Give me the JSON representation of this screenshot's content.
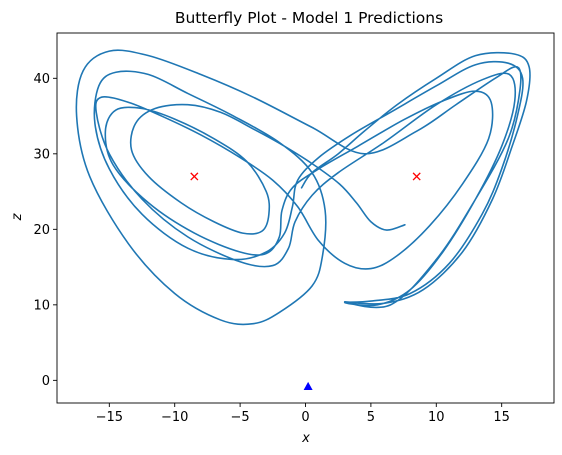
{
  "chart_data": {
    "type": "line",
    "title": "Butterfly Plot - Model 1 Predictions",
    "xlabel": "x",
    "ylabel": "z",
    "xlim": [
      -19,
      19
    ],
    "ylim": [
      -3,
      46
    ],
    "xticks": [
      -15,
      -10,
      -5,
      0,
      5,
      10,
      15
    ],
    "yticks": [
      0,
      10,
      20,
      30,
      40
    ],
    "xtick_labels": [
      "−15",
      "−10",
      "−5",
      "0",
      "5",
      "10",
      "15"
    ],
    "ytick_labels": [
      "0",
      "10",
      "20",
      "30",
      "40"
    ],
    "grid": false,
    "line_color": "#1f77b4",
    "series": [
      {
        "type": "line",
        "points": [
          [
            7.6,
            20.6
          ],
          [
            6.2,
            19.9
          ],
          [
            5.0,
            21.0
          ],
          [
            3.9,
            23.5
          ],
          [
            2.6,
            26.0
          ],
          [
            0.5,
            28.7
          ],
          [
            -2.0,
            31.4
          ],
          [
            -4.0,
            33.3
          ],
          [
            -6.5,
            35.5
          ],
          [
            -9.0,
            36.5
          ],
          [
            -11.5,
            36.0
          ],
          [
            -13.0,
            34.0
          ],
          [
            -13.3,
            30.5
          ],
          [
            -12.0,
            27.0
          ],
          [
            -9.5,
            23.5
          ],
          [
            -7.0,
            21.0
          ],
          [
            -4.8,
            19.5
          ],
          [
            -3.3,
            19.8
          ],
          [
            -2.8,
            22.0
          ],
          [
            -3.0,
            25.0
          ],
          [
            -4.5,
            29.0
          ],
          [
            -7.0,
            32.0
          ],
          [
            -10.0,
            34.6
          ],
          [
            -12.5,
            36.0
          ],
          [
            -14.5,
            35.8
          ],
          [
            -15.3,
            33.0
          ],
          [
            -14.7,
            28.5
          ],
          [
            -12.0,
            23.5
          ],
          [
            -8.5,
            19.5
          ],
          [
            -5.0,
            17.0
          ],
          [
            -3.0,
            16.8
          ],
          [
            -2.0,
            19.0
          ],
          [
            -1.8,
            22.5
          ],
          [
            -1.0,
            25.5
          ],
          [
            1.0,
            28.0
          ],
          [
            4.0,
            31.0
          ],
          [
            7.5,
            34.5
          ],
          [
            10.5,
            37.0
          ],
          [
            13.0,
            38.3
          ],
          [
            14.2,
            36.8
          ],
          [
            14.0,
            32.0
          ],
          [
            12.0,
            26.0
          ],
          [
            9.5,
            20.5
          ],
          [
            7.0,
            16.5
          ],
          [
            5.0,
            14.8
          ],
          [
            3.0,
            15.5
          ],
          [
            1.0,
            18.5
          ],
          [
            -0.6,
            23.0
          ],
          [
            -2.5,
            26.5
          ],
          [
            -5.0,
            29.5
          ],
          [
            -8.0,
            32.5
          ],
          [
            -11.0,
            35.0
          ],
          [
            -13.5,
            36.8
          ],
          [
            -15.6,
            37.5
          ],
          [
            -16.0,
            35.5
          ],
          [
            -15.0,
            30.0
          ],
          [
            -12.5,
            24.0
          ],
          [
            -9.0,
            19.0
          ],
          [
            -5.0,
            15.7
          ],
          [
            -2.5,
            15.2
          ],
          [
            -1.3,
            17.5
          ],
          [
            -0.8,
            21.0
          ],
          [
            0.5,
            24.5
          ],
          [
            2.5,
            27.5
          ],
          [
            6.0,
            31.5
          ],
          [
            10.0,
            36.5
          ],
          [
            13.5,
            39.8
          ],
          [
            15.6,
            40.5
          ],
          [
            16.0,
            37.0
          ],
          [
            15.0,
            31.0
          ],
          [
            13.0,
            24.0
          ],
          [
            10.5,
            17.0
          ],
          [
            8.0,
            12.0
          ],
          [
            5.5,
            10.0
          ],
          [
            3.0,
            10.3
          ],
          [
            5.0,
            10.5
          ],
          [
            8.0,
            11.5
          ],
          [
            11.0,
            15.5
          ],
          [
            13.5,
            22.0
          ],
          [
            15.0,
            28.0
          ],
          [
            16.2,
            35.0
          ],
          [
            16.6,
            40.0
          ],
          [
            15.5,
            42.0
          ],
          [
            13.0,
            41.8
          ],
          [
            10.0,
            39.0
          ],
          [
            6.5,
            35.5
          ],
          [
            3.5,
            32.5
          ],
          [
            1.0,
            29.5
          ],
          [
            -0.6,
            26.5
          ],
          [
            -1.0,
            23.0
          ],
          [
            -1.6,
            19.5
          ],
          [
            -3.0,
            17.0
          ],
          [
            -5.5,
            16.0
          ],
          [
            -9.0,
            17.5
          ],
          [
            -12.5,
            22.0
          ],
          [
            -15.0,
            28.0
          ],
          [
            -16.1,
            34.0
          ],
          [
            -15.8,
            39.0
          ],
          [
            -14.5,
            40.8
          ],
          [
            -12.0,
            40.5
          ],
          [
            -9.0,
            38.0
          ],
          [
            -5.5,
            35.0
          ],
          [
            -2.0,
            31.5
          ],
          [
            0.5,
            27.5
          ],
          [
            1.5,
            22.5
          ],
          [
            1.3,
            16.5
          ],
          [
            0.5,
            12.5
          ],
          [
            -2.0,
            9.0
          ],
          [
            -4.0,
            7.5
          ],
          [
            -6.5,
            8.0
          ],
          [
            -10.0,
            11.5
          ],
          [
            -13.5,
            18.0
          ],
          [
            -16.5,
            27.0
          ],
          [
            -17.5,
            35.0
          ],
          [
            -17.0,
            41.0
          ],
          [
            -15.0,
            43.6
          ],
          [
            -12.0,
            43.0
          ],
          [
            -8.0,
            40.5
          ],
          [
            -4.0,
            37.5
          ],
          [
            0.5,
            33.5
          ],
          [
            4.5,
            30.0
          ],
          [
            8.5,
            33.0
          ],
          [
            11.5,
            36.5
          ],
          [
            14.5,
            40.0
          ],
          [
            16.2,
            41.5
          ],
          [
            16.4,
            38.5
          ],
          [
            15.5,
            32.0
          ],
          [
            13.0,
            24.0
          ],
          [
            10.0,
            16.0
          ],
          [
            6.5,
            10.0
          ],
          [
            3.0,
            10.4
          ],
          [
            6.0,
            10.2
          ],
          [
            9.0,
            12.0
          ],
          [
            12.0,
            17.0
          ],
          [
            14.3,
            24.0
          ],
          [
            15.8,
            31.0
          ],
          [
            16.9,
            37.0
          ],
          [
            17.1,
            41.5
          ],
          [
            16.0,
            43.2
          ],
          [
            13.0,
            43.0
          ],
          [
            10.0,
            40.0
          ],
          [
            7.0,
            36.5
          ],
          [
            4.5,
            33.0
          ],
          [
            2.5,
            30.0
          ],
          [
            0.5,
            27.5
          ],
          [
            -0.3,
            25.5
          ]
        ]
      },
      {
        "type": "marker",
        "marker": "x",
        "color": "#ff0000",
        "points": [
          [
            -8.5,
            27.0
          ],
          [
            8.5,
            27.0
          ]
        ]
      },
      {
        "type": "marker",
        "marker": "triangle",
        "color": "#0000ff",
        "points": [
          [
            0.2,
            -0.8
          ]
        ]
      }
    ]
  }
}
